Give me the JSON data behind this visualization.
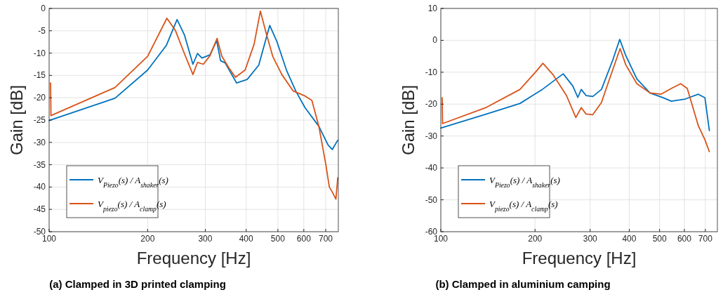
{
  "chart_data": [
    {
      "type": "line",
      "title": "(a) Clamped in 3D printed clamping",
      "xlabel": "Frequency [Hz]",
      "ylabel": "Gain [dB]",
      "log": "x",
      "grid": true,
      "legend": "bottom left",
      "line_style": "solid",
      "xlim": [
        100,
        765
      ],
      "xticks": [
        100,
        200,
        300,
        400,
        500,
        600,
        700
      ],
      "ylim": [
        -50,
        0
      ],
      "yticks": [
        -50,
        -45,
        -40,
        -35,
        -30,
        -25,
        -20,
        -15,
        -10,
        -5,
        0
      ],
      "series": [
        {
          "name": "V$_{Piezo}$(s) / A$_{shaker}$(s)",
          "color": "#0072bd",
          "x": [
            100,
            159,
            200,
            228,
            246,
            259,
            275,
            284,
            293,
            310,
            325,
            334,
            345,
            374,
            403,
            437,
            472,
            497,
            531,
            567,
            605,
            667,
            712,
            733,
            762
          ],
          "values": [
            -25.1,
            -20.1,
            -13.8,
            -8.3,
            -2.5,
            -5.9,
            -12.5,
            -10.1,
            -11.1,
            -10.4,
            -7.2,
            -11.7,
            -12.2,
            -16.7,
            -15.9,
            -12.7,
            -3.8,
            -7.5,
            -13.8,
            -18.5,
            -22.2,
            -26.4,
            -30.6,
            -31.6,
            -29.5
          ]
        },
        {
          "name": "V$_{piezo}$(s) / A$_{clamp}$(s)",
          "color": "#d95319",
          "x": [
            101,
            101.3,
            159,
            200,
            229,
            243,
            259,
            275,
            284,
            296,
            310,
            326,
            337,
            354,
            371,
            397,
            423,
            442,
            458,
            482,
            514,
            557,
            605,
            635,
            667,
            700,
            718,
            733,
            752,
            762
          ],
          "values": [
            -16.7,
            -24,
            -17.7,
            -10.7,
            -2.2,
            -4.9,
            -10.1,
            -14.8,
            -12.1,
            -12.5,
            -10.6,
            -6.7,
            -10.7,
            -13.3,
            -15.4,
            -13.8,
            -8,
            -0.6,
            -4.9,
            -10.7,
            -14.8,
            -18.5,
            -19.6,
            -20.6,
            -26.4,
            -34.8,
            -40,
            -41.1,
            -42.7,
            -37.9
          ]
        }
      ]
    },
    {
      "type": "line",
      "title": "(b) Clamped in aluminium camping",
      "xlabel": "Frequency [Hz]",
      "ylabel": "Gain [dB]",
      "log": "x",
      "grid": true,
      "legend": "bottom left",
      "line_style": "solid",
      "xlim": [
        100,
        765
      ],
      "xticks": [
        100,
        200,
        300,
        400,
        500,
        600,
        700
      ],
      "ylim": [
        -60,
        10
      ],
      "yticks": [
        -60,
        -50,
        -40,
        -30,
        -20,
        -10,
        0,
        10
      ],
      "series": [
        {
          "name": "V$_{Piezo}$(s) / A$_{shaker}$(s)",
          "color": "#0072bd",
          "x": [
            100,
            140,
            179,
            211,
            246,
            264,
            274,
            281,
            291,
            306,
            326,
            354,
            373,
            390,
            423,
            466,
            513,
            545,
            604,
            665,
            698,
            721
          ],
          "values": [
            -27.5,
            -23.1,
            -19.8,
            -15.4,
            -10.5,
            -14.3,
            -17.9,
            -15.4,
            -17.3,
            -17.6,
            -15.4,
            -6.3,
            0.3,
            -4.8,
            -12.1,
            -16.5,
            -18,
            -19.1,
            -18.4,
            -16.9,
            -18,
            -28.3
          ]
        },
        {
          "name": "V$_{piezo}$(s) / A$_{clamp}$(s)",
          "color": "#d95319",
          "x": [
            101,
            101.3,
            140,
            179,
            201,
            212,
            228,
            252,
            270,
            281,
            291,
            306,
            326,
            348,
            374,
            390,
            423,
            466,
            505,
            545,
            584,
            613,
            665,
            698,
            721
          ],
          "values": [
            -18,
            -26.1,
            -21,
            -15.4,
            -9.9,
            -7.2,
            -10.7,
            -17.3,
            -24.2,
            -21.1,
            -23.1,
            -23.3,
            -19.5,
            -11.4,
            -2.6,
            -7.7,
            -13.6,
            -16.5,
            -16.9,
            -15.1,
            -13.6,
            -15.1,
            -26.8,
            -31.2,
            -34.9
          ]
        }
      ]
    }
  ]
}
